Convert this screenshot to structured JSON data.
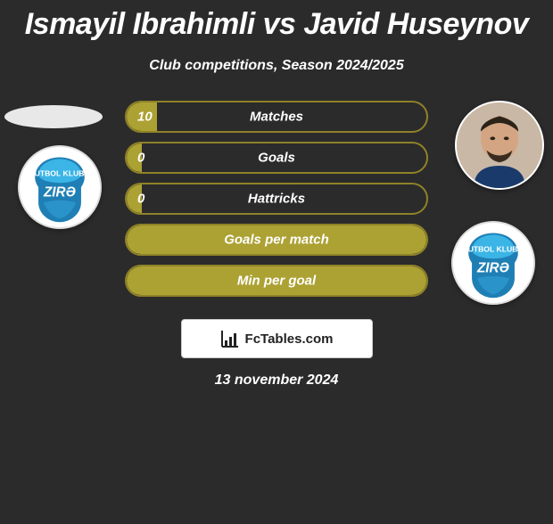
{
  "title": "Ismayil Ibrahimli vs Javid Huseynov",
  "subtitle": "Club competitions, Season 2024/2025",
  "date": "13 november 2024",
  "attribution": "FcTables.com",
  "colors": {
    "background": "#2b2b2b",
    "bar_border": "#8f8228",
    "bar_fill": "#aca133",
    "text": "#ffffff"
  },
  "club": {
    "name": "ZIRƏ",
    "badge_bg": "#ffffff",
    "emblem_top": "#3bb4e6",
    "emblem_body": "#1f7fb5",
    "text_color": "#ffffff"
  },
  "stats": [
    {
      "label": "Matches",
      "left_value": "10",
      "right_value": "",
      "left_pct": 10,
      "right_pct": 0
    },
    {
      "label": "Goals",
      "left_value": "0",
      "right_value": "",
      "left_pct": 5,
      "right_pct": 0
    },
    {
      "label": "Hattricks",
      "left_value": "0",
      "right_value": "",
      "left_pct": 5,
      "right_pct": 0
    },
    {
      "label": "Goals per match",
      "left_value": "",
      "right_value": "",
      "left_pct": 50,
      "right_pct": 50
    },
    {
      "label": "Min per goal",
      "left_value": "",
      "right_value": "",
      "left_pct": 50,
      "right_pct": 50
    }
  ]
}
